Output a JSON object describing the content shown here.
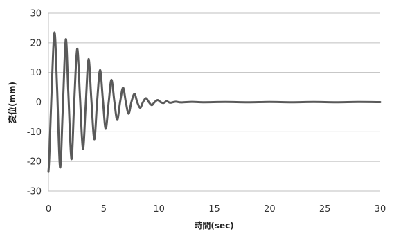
{
  "chart_data": {
    "type": "line",
    "title": "",
    "xlabel": "時間(sec)",
    "ylabel": "変位(mm)",
    "xlim": [
      0,
      30
    ],
    "ylim": [
      -30,
      30
    ],
    "x_ticks": [
      0,
      5,
      10,
      15,
      20,
      25,
      30
    ],
    "y_ticks": [
      -30,
      -20,
      -10,
      0,
      10,
      20,
      30
    ],
    "grid": "horizontal",
    "legend": "none",
    "line_color": "#5a5a5a",
    "series": [
      {
        "name": "",
        "x": [
          0,
          0.08,
          0.3,
          0.55,
          0.78,
          1.05,
          1.3,
          1.57,
          1.8,
          2.08,
          2.32,
          2.6,
          2.85,
          3.12,
          3.37,
          3.63,
          3.88,
          4.15,
          4.4,
          4.67,
          4.93,
          5.18,
          5.45,
          5.7,
          5.97,
          6.22,
          6.48,
          6.75,
          7.0,
          7.25,
          7.5,
          7.78,
          8.03,
          8.3,
          8.55,
          8.82,
          9.08,
          9.35,
          9.6,
          9.88,
          10.15,
          10.4,
          10.7,
          11.0,
          11.5,
          12.0,
          13.0,
          14.0,
          16.0,
          18.0,
          20.0,
          22.0,
          24.0,
          26.0,
          28.0,
          30.0
        ],
        "y": [
          -23.5,
          -18.0,
          5.0,
          23.5,
          5.0,
          -22.0,
          -2.0,
          21.2,
          3.0,
          -19.2,
          -1.0,
          18.0,
          2.0,
          -15.8,
          -1.0,
          14.5,
          1.0,
          -12.5,
          0.0,
          10.8,
          0.5,
          -9.0,
          0.0,
          7.5,
          0.0,
          -6.0,
          0.0,
          4.9,
          0.0,
          -3.9,
          0.0,
          2.8,
          0.0,
          -1.9,
          0.0,
          1.3,
          0.0,
          -1.0,
          0.0,
          0.7,
          0.0,
          -0.3,
          0.3,
          -0.2,
          0.15,
          -0.1,
          0.1,
          -0.05,
          0.05,
          -0.05,
          0.05,
          -0.05,
          0.05,
          -0.05,
          0.05,
          0.0
        ]
      }
    ]
  }
}
